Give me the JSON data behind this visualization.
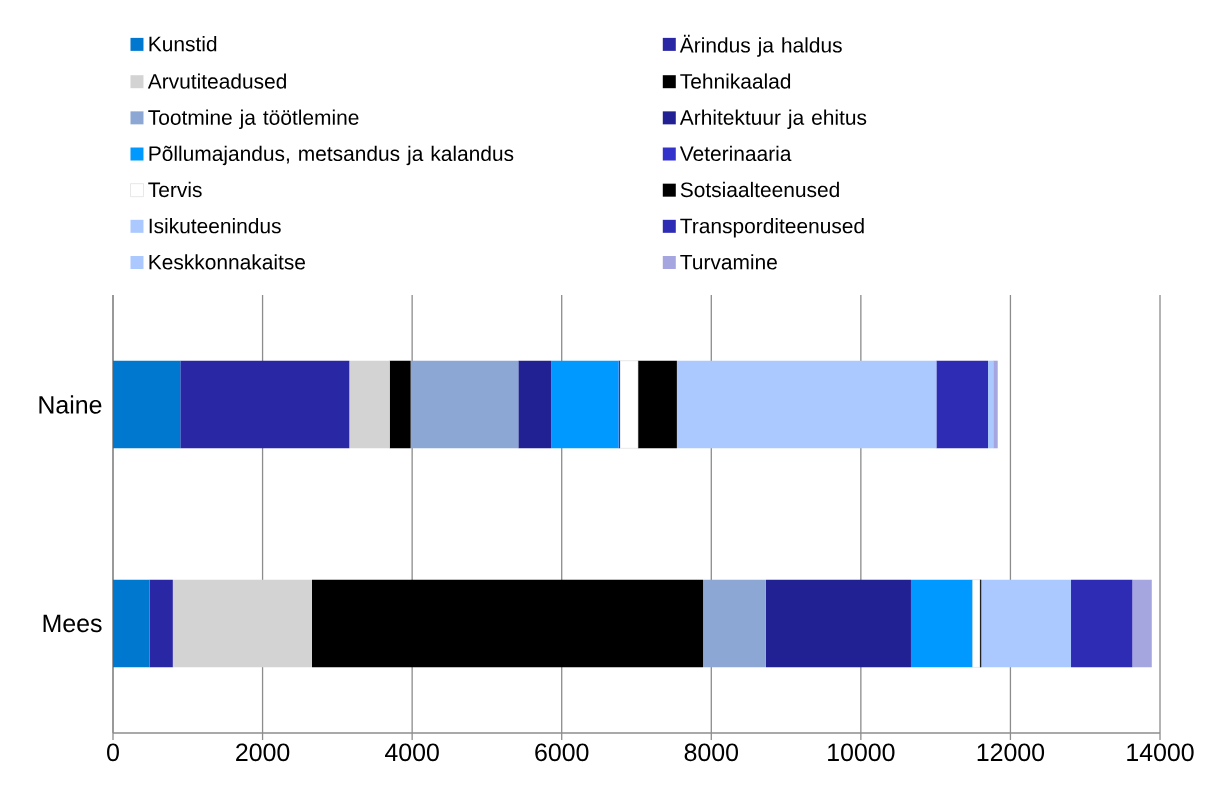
{
  "chart_data": {
    "type": "bar",
    "orientation": "horizontal",
    "stacked": true,
    "categories": [
      "Naine",
      "Mees"
    ],
    "series": [
      {
        "name": "Kunstid",
        "color": "#0078d0",
        "values": [
          900,
          490
        ]
      },
      {
        "name": "Ärindus ja haldus",
        "color": "#2a27a4",
        "values": [
          2260,
          310
        ]
      },
      {
        "name": "Arvutiteadused",
        "color": "#d3d3d3",
        "values": [
          540,
          1860
        ]
      },
      {
        "name": "Tehnikaalad",
        "color": "#000000",
        "values": [
          280,
          5230
        ]
      },
      {
        "name": "Tootmine ja töötlemine",
        "color": "#8ca7d4",
        "values": [
          1440,
          840
        ]
      },
      {
        "name": "Arhitektuur ja ehitus",
        "color": "#212194",
        "values": [
          440,
          1940
        ]
      },
      {
        "name": "Põllumajandus, metsandus ja kalandus",
        "color": "#0099ff",
        "values": [
          900,
          820
        ]
      },
      {
        "name": "Veterinaaria",
        "color": "#3333cc",
        "values": [
          20,
          null
        ]
      },
      {
        "name": "Tervis",
        "color": "#ffffff",
        "values": [
          240,
          100
        ]
      },
      {
        "name": "Sotsiaalteenused",
        "color": "#000000",
        "values": [
          520,
          20
        ]
      },
      {
        "name": "Isikuteenindus",
        "color": "#abc8ff",
        "values": [
          3470,
          1200
        ]
      },
      {
        "name": "Transporditeenused",
        "color": "#2e2bb5",
        "values": [
          690,
          820
        ]
      },
      {
        "name": "Keskkonnakaitse",
        "color": "#abc8ff",
        "values": [
          70,
          null
        ]
      },
      {
        "name": "Turvamine",
        "color": "#a5a5e0",
        "values": [
          60,
          260
        ]
      }
    ],
    "xlim": [
      0,
      14000
    ],
    "xticks": [
      0,
      2000,
      4000,
      6000,
      8000,
      10000,
      12000,
      14000
    ],
    "grid": "x",
    "legend": "top"
  }
}
